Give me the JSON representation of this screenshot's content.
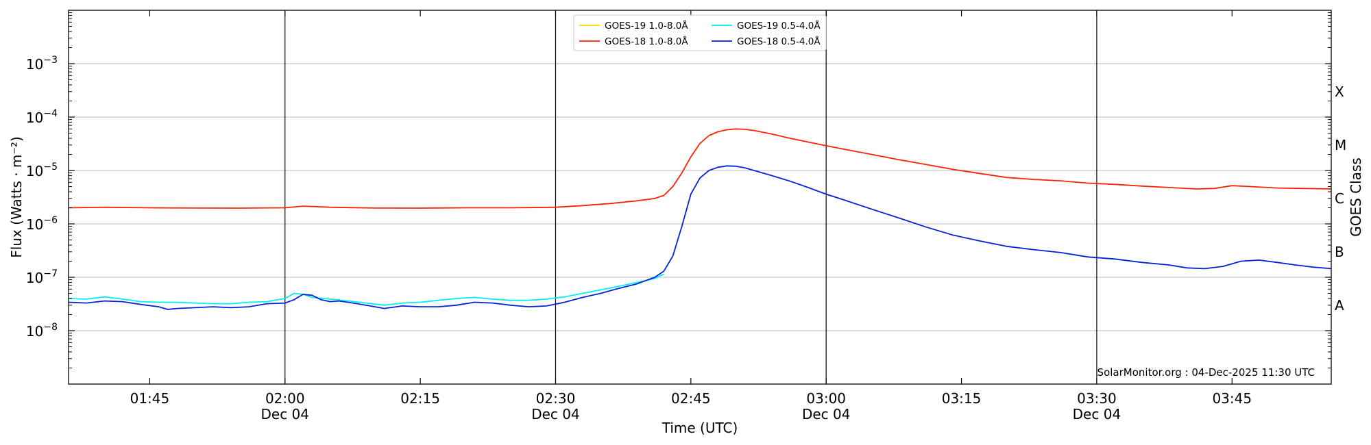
{
  "chart_data": {
    "type": "line",
    "xlabel": "Time (UTC)",
    "ylabel": "Flux (Watts · m⁻²)",
    "ylabel_right": "GOES Class",
    "y_scale": "log",
    "ylim": [
      1e-09,
      0.01
    ],
    "xlim": [
      "01:36",
      "03:56"
    ],
    "x_ticks": [
      {
        "time": "01:45",
        "label": "01:45",
        "sublabel": ""
      },
      {
        "time": "02:00",
        "label": "02:00",
        "sublabel": "Dec 04"
      },
      {
        "time": "02:15",
        "label": "02:15",
        "sublabel": ""
      },
      {
        "time": "02:30",
        "label": "02:30",
        "sublabel": "Dec 04"
      },
      {
        "time": "02:45",
        "label": "02:45",
        "sublabel": ""
      },
      {
        "time": "03:00",
        "label": "03:00",
        "sublabel": "Dec 04"
      },
      {
        "time": "03:15",
        "label": "03:15",
        "sublabel": ""
      },
      {
        "time": "03:30",
        "label": "03:30",
        "sublabel": "Dec 04"
      },
      {
        "time": "03:45",
        "label": "03:45",
        "sublabel": ""
      }
    ],
    "vertical_lines": [
      "02:00",
      "02:30",
      "03:00",
      "03:30"
    ],
    "y_ticks": [
      {
        "exp": -8,
        "base": "10",
        "sup": "−8"
      },
      {
        "exp": -7,
        "base": "10",
        "sup": "−7"
      },
      {
        "exp": -6,
        "base": "10",
        "sup": "−6"
      },
      {
        "exp": -5,
        "base": "10",
        "sup": "−5"
      },
      {
        "exp": -4,
        "base": "10",
        "sup": "−4"
      },
      {
        "exp": -3,
        "base": "10",
        "sup": "−3"
      }
    ],
    "class_labels": [
      {
        "label": "A",
        "value": 3e-08
      },
      {
        "label": "B",
        "value": 3e-07
      },
      {
        "label": "C",
        "value": 3e-06
      },
      {
        "label": "M",
        "value": 3e-05
      },
      {
        "label": "X",
        "value": 0.0003
      }
    ],
    "grid": true,
    "legend_position": "top-center",
    "credit": "SolarMonitor.org : 04-Dec-2025 11:30 UTC",
    "series": [
      {
        "name": "GOES-19 1.0-8.0Å",
        "color": "#ffd700",
        "x": [],
        "y": []
      },
      {
        "name": "GOES-18 1.0-8.0Å",
        "color": "#ff2200",
        "x": [
          "01:36",
          "01:40",
          "01:45",
          "01:50",
          "01:55",
          "02:00",
          "02:02",
          "02:05",
          "02:10",
          "02:15",
          "02:20",
          "02:25",
          "02:30",
          "02:33",
          "02:36",
          "02:39",
          "02:41",
          "02:42",
          "02:43",
          "02:44",
          "02:45",
          "02:46",
          "02:47",
          "02:48",
          "02:49",
          "02:50",
          "02:51",
          "02:52",
          "02:54",
          "02:56",
          "02:58",
          "03:00",
          "03:02",
          "03:05",
          "03:08",
          "03:11",
          "03:14",
          "03:17",
          "03:20",
          "03:23",
          "03:26",
          "03:29",
          "03:32",
          "03:35",
          "03:38",
          "03:41",
          "03:43",
          "03:45",
          "03:47",
          "03:50",
          "03:53",
          "03:56"
        ],
        "y": [
          2e-06,
          2.05e-06,
          2e-06,
          1.98e-06,
          1.97e-06,
          2e-06,
          2.15e-06,
          2.05e-06,
          1.98e-06,
          1.97e-06,
          2e-06,
          2e-06,
          2.05e-06,
          2.2e-06,
          2.4e-06,
          2.7e-06,
          3e-06,
          3.4e-06,
          5e-06,
          9e-06,
          1.8e-05,
          3.2e-05,
          4.5e-05,
          5.3e-05,
          5.8e-05,
          6e-05,
          5.9e-05,
          5.6e-05,
          4.8e-05,
          4e-05,
          3.4e-05,
          2.9e-05,
          2.5e-05,
          2e-05,
          1.6e-05,
          1.3e-05,
          1.05e-05,
          8.8e-06,
          7.4e-06,
          6.8e-06,
          6.4e-06,
          5.8e-06,
          5.5e-06,
          5.1e-06,
          4.8e-06,
          4.5e-06,
          4.6e-06,
          5.2e-06,
          5e-06,
          4.7e-06,
          4.6e-06,
          4.5e-06
        ]
      },
      {
        "name": "GOES-19 0.5-4.0Å",
        "color": "#00eeee",
        "x": [
          "01:36",
          "01:38",
          "01:40",
          "01:42",
          "01:44",
          "01:46",
          "01:48",
          "01:50",
          "01:52",
          "01:54",
          "01:56",
          "01:58",
          "02:00",
          "02:01",
          "02:02",
          "02:03",
          "02:05",
          "02:07",
          "02:09",
          "02:11",
          "02:13",
          "02:15",
          "02:17",
          "02:19",
          "02:21",
          "02:23",
          "02:25",
          "02:27",
          "02:29",
          "02:31",
          "02:33",
          "02:35",
          "02:37",
          "02:39",
          "02:41",
          "02:42"
        ],
        "y": [
          4e-08,
          3.9e-08,
          4.3e-08,
          3.9e-08,
          3.5e-08,
          3.4e-08,
          3.4e-08,
          3.3e-08,
          3.2e-08,
          3.2e-08,
          3.4e-08,
          3.5e-08,
          4e-08,
          5e-08,
          4.8e-08,
          4.2e-08,
          3.9e-08,
          3.6e-08,
          3.3e-08,
          3e-08,
          3.3e-08,
          3.4e-08,
          3.7e-08,
          4e-08,
          4.2e-08,
          3.9e-08,
          3.7e-08,
          3.7e-08,
          3.9e-08,
          4.3e-08,
          5e-08,
          5.8e-08,
          6.8e-08,
          8e-08,
          9.5e-08,
          1.15e-07
        ]
      },
      {
        "name": "GOES-18 0.5-4.0Å",
        "color": "#0022dd",
        "x": [
          "01:36",
          "01:38",
          "01:40",
          "01:42",
          "01:44",
          "01:46",
          "01:47",
          "01:48",
          "01:50",
          "01:52",
          "01:54",
          "01:56",
          "01:58",
          "02:00",
          "02:01",
          "02:02",
          "02:03",
          "02:04",
          "02:05",
          "02:06",
          "02:08",
          "02:10",
          "02:11",
          "02:13",
          "02:15",
          "02:17",
          "02:19",
          "02:21",
          "02:23",
          "02:25",
          "02:27",
          "02:29",
          "02:31",
          "02:33",
          "02:35",
          "02:37",
          "02:39",
          "02:41",
          "02:42",
          "02:43",
          "02:44",
          "02:45",
          "02:46",
          "02:47",
          "02:48",
          "02:49",
          "02:50",
          "02:51",
          "02:52",
          "02:54",
          "02:56",
          "02:58",
          "03:00",
          "03:02",
          "03:05",
          "03:08",
          "03:11",
          "03:14",
          "03:17",
          "03:20",
          "03:23",
          "03:26",
          "03:29",
          "03:32",
          "03:35",
          "03:38",
          "03:40",
          "03:42",
          "03:44",
          "03:46",
          "03:48",
          "03:50",
          "03:52",
          "03:54",
          "03:56"
        ],
        "y": [
          3.4e-08,
          3.3e-08,
          3.6e-08,
          3.5e-08,
          3.1e-08,
          2.8e-08,
          2.5e-08,
          2.6e-08,
          2.7e-08,
          2.8e-08,
          2.7e-08,
          2.8e-08,
          3.2e-08,
          3.3e-08,
          3.8e-08,
          4.8e-08,
          4.6e-08,
          3.8e-08,
          3.5e-08,
          3.6e-08,
          3.2e-08,
          2.8e-08,
          2.6e-08,
          2.9e-08,
          2.8e-08,
          2.8e-08,
          3e-08,
          3.4e-08,
          3.3e-08,
          3e-08,
          2.8e-08,
          2.9e-08,
          3.4e-08,
          4.2e-08,
          5e-08,
          6.2e-08,
          7.5e-08,
          1e-07,
          1.3e-07,
          2.5e-07,
          9e-07,
          3.6e-06,
          7.2e-06,
          1e-05,
          1.15e-05,
          1.22e-05,
          1.2e-05,
          1.12e-05,
          1e-05,
          8e-06,
          6.3e-06,
          4.8e-06,
          3.6e-06,
          2.8e-06,
          1.9e-06,
          1.3e-06,
          8.8e-07,
          6.2e-07,
          4.8e-07,
          3.8e-07,
          3.3e-07,
          2.9e-07,
          2.4e-07,
          2.2e-07,
          1.9e-07,
          1.7e-07,
          1.5e-07,
          1.45e-07,
          1.6e-07,
          2e-07,
          2.1e-07,
          1.9e-07,
          1.7e-07,
          1.55e-07,
          1.45e-07
        ]
      }
    ]
  }
}
